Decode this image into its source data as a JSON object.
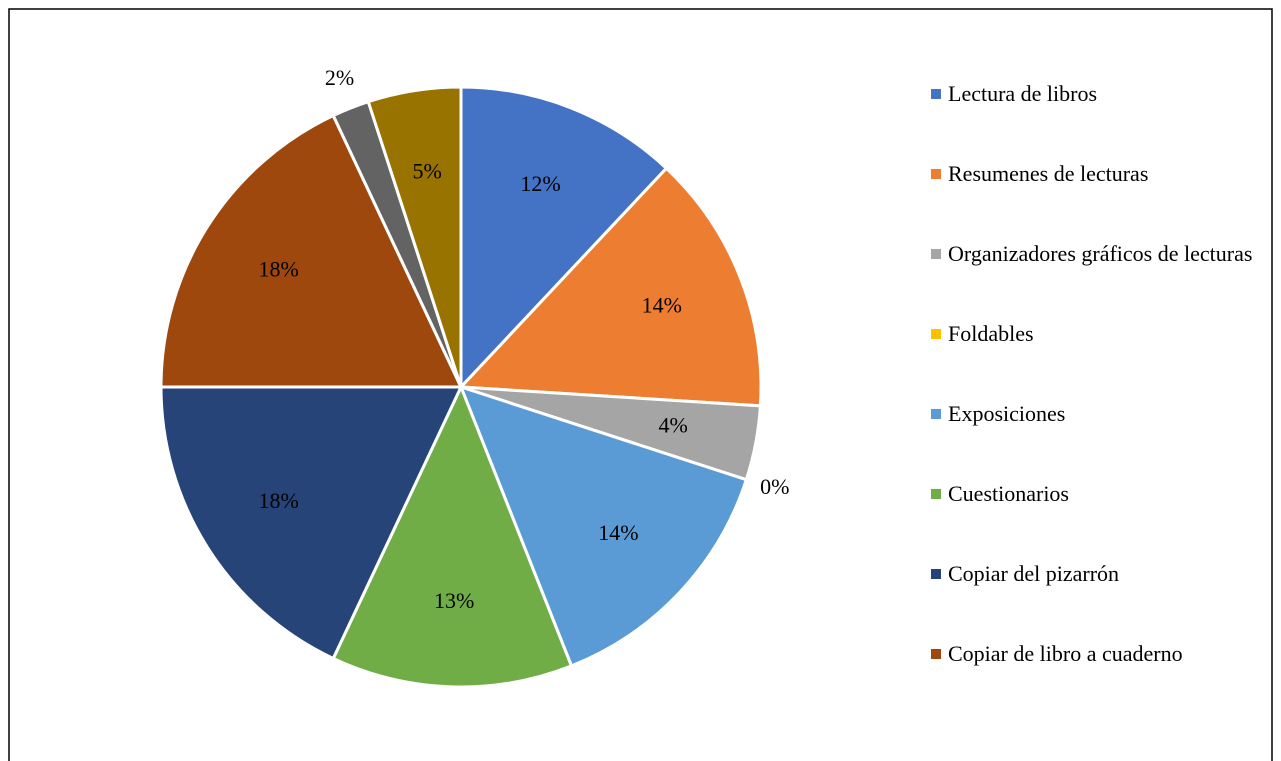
{
  "chart_data": {
    "type": "pie",
    "categories": [
      "Lectura de libros",
      "Resumenes de lecturas",
      "Organizadores gráficos de lecturas",
      "Foldables",
      "Exposiciones",
      "Cuestionarios",
      "Copiar del pizarrón",
      "Copiar de libro a cuaderno",
      null,
      null
    ],
    "values": [
      12,
      14,
      4,
      0,
      14,
      13,
      18,
      18,
      2,
      5
    ],
    "value_labels": [
      "12%",
      "14%",
      "4%",
      "0%",
      "14%",
      "13%",
      "18%",
      "18%",
      "2%",
      "5%"
    ],
    "colors": [
      "#4472c4",
      "#ed7d31",
      "#a5a5a5",
      "#ffc000",
      "#5b9bd5",
      "#70ad47",
      "#264478",
      "#9e480e",
      "#636363",
      "#997300"
    ],
    "legend": "right"
  }
}
